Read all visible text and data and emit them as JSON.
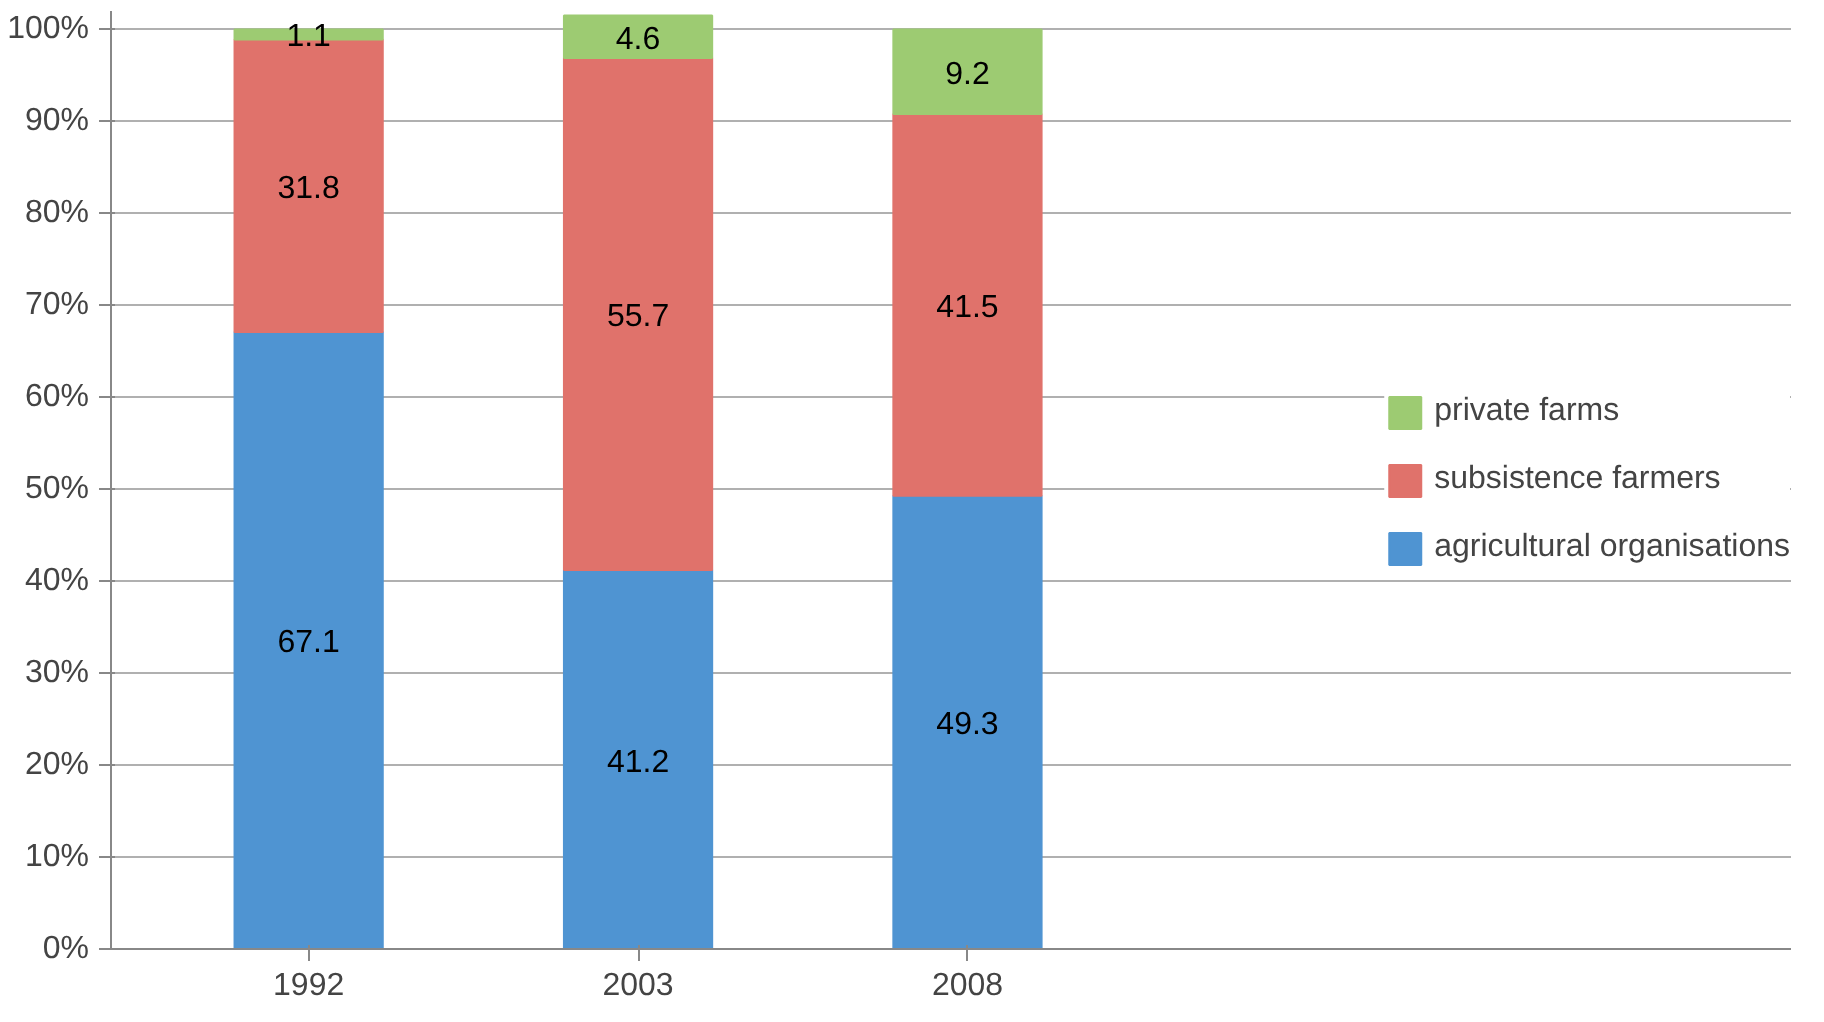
{
  "chart_data": {
    "type": "bar",
    "stacked": true,
    "categories": [
      "1992",
      "2003",
      "2008"
    ],
    "series": [
      {
        "name": "agricultural organisations",
        "color": "#4f94d2",
        "values": [
          67.1,
          41.2,
          49.3
        ]
      },
      {
        "name": "subsistence farmers",
        "color": "#e0726b",
        "values": [
          31.8,
          55.7,
          41.5
        ]
      },
      {
        "name": "private farms",
        "color": "#9dcb72",
        "values": [
          1.1,
          4.6,
          9.2
        ]
      }
    ],
    "ylim": [
      0,
      102
    ],
    "yticks": [
      {
        "value": 0,
        "label": "0%"
      },
      {
        "value": 10,
        "label": "10%"
      },
      {
        "value": 20,
        "label": "20%"
      },
      {
        "value": 30,
        "label": "30%"
      },
      {
        "value": 40,
        "label": "40%"
      },
      {
        "value": 50,
        "label": "50%"
      },
      {
        "value": 60,
        "label": "60%"
      },
      {
        "value": 70,
        "label": "70%"
      },
      {
        "value": 80,
        "label": "80%"
      },
      {
        "value": 90,
        "label": "90%"
      },
      {
        "value": 100,
        "label": "100%"
      }
    ],
    "grid": "y",
    "legend": "right",
    "data_labels": true
  }
}
